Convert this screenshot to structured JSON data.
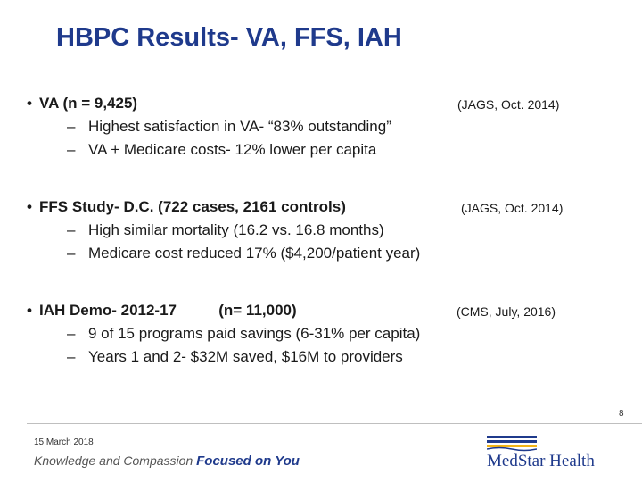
{
  "title": "HBPC Results-   VA,  FFS,  IAH",
  "bullets": [
    {
      "text": "VA  (n = 9,425)",
      "citation": "(JAGS, Oct. 2014)",
      "subs": [
        "Highest satisfaction in VA-  “83% outstanding”",
        "VA + Medicare costs- 12% lower per capita"
      ]
    },
    {
      "text": "FFS Study-  D.C. (722 cases, 2161 controls)",
      "citation": "(JAGS, Oct. 2014)",
      "subs": [
        "High similar mortality  (16.2 vs. 16.8 months)",
        "Medicare cost reduced 17% ($4,200/patient year)"
      ]
    },
    {
      "text": "IAH Demo- 2012-17          (n= 11,000)",
      "citation": "(CMS, July, 2016)",
      "subs": [
        "9 of 15 programs paid savings  (6-31% per capita)",
        "Years 1 and 2-  $32M saved, $16M to providers"
      ]
    }
  ],
  "bullet_symbol": "•",
  "dash_symbol": "–",
  "page_number": "8",
  "footer": {
    "date": "15 March 2018",
    "tagline_light": "Knowledge and Compassion",
    "tagline_strong": "Focused on You",
    "logo_text": "MedStar Health",
    "logo_icon": "medstar-wave-logo-icon"
  },
  "colors": {
    "title": "#1f3a8c",
    "logo_navy": "#1f3a8c",
    "logo_gold": "#f2b417"
  }
}
